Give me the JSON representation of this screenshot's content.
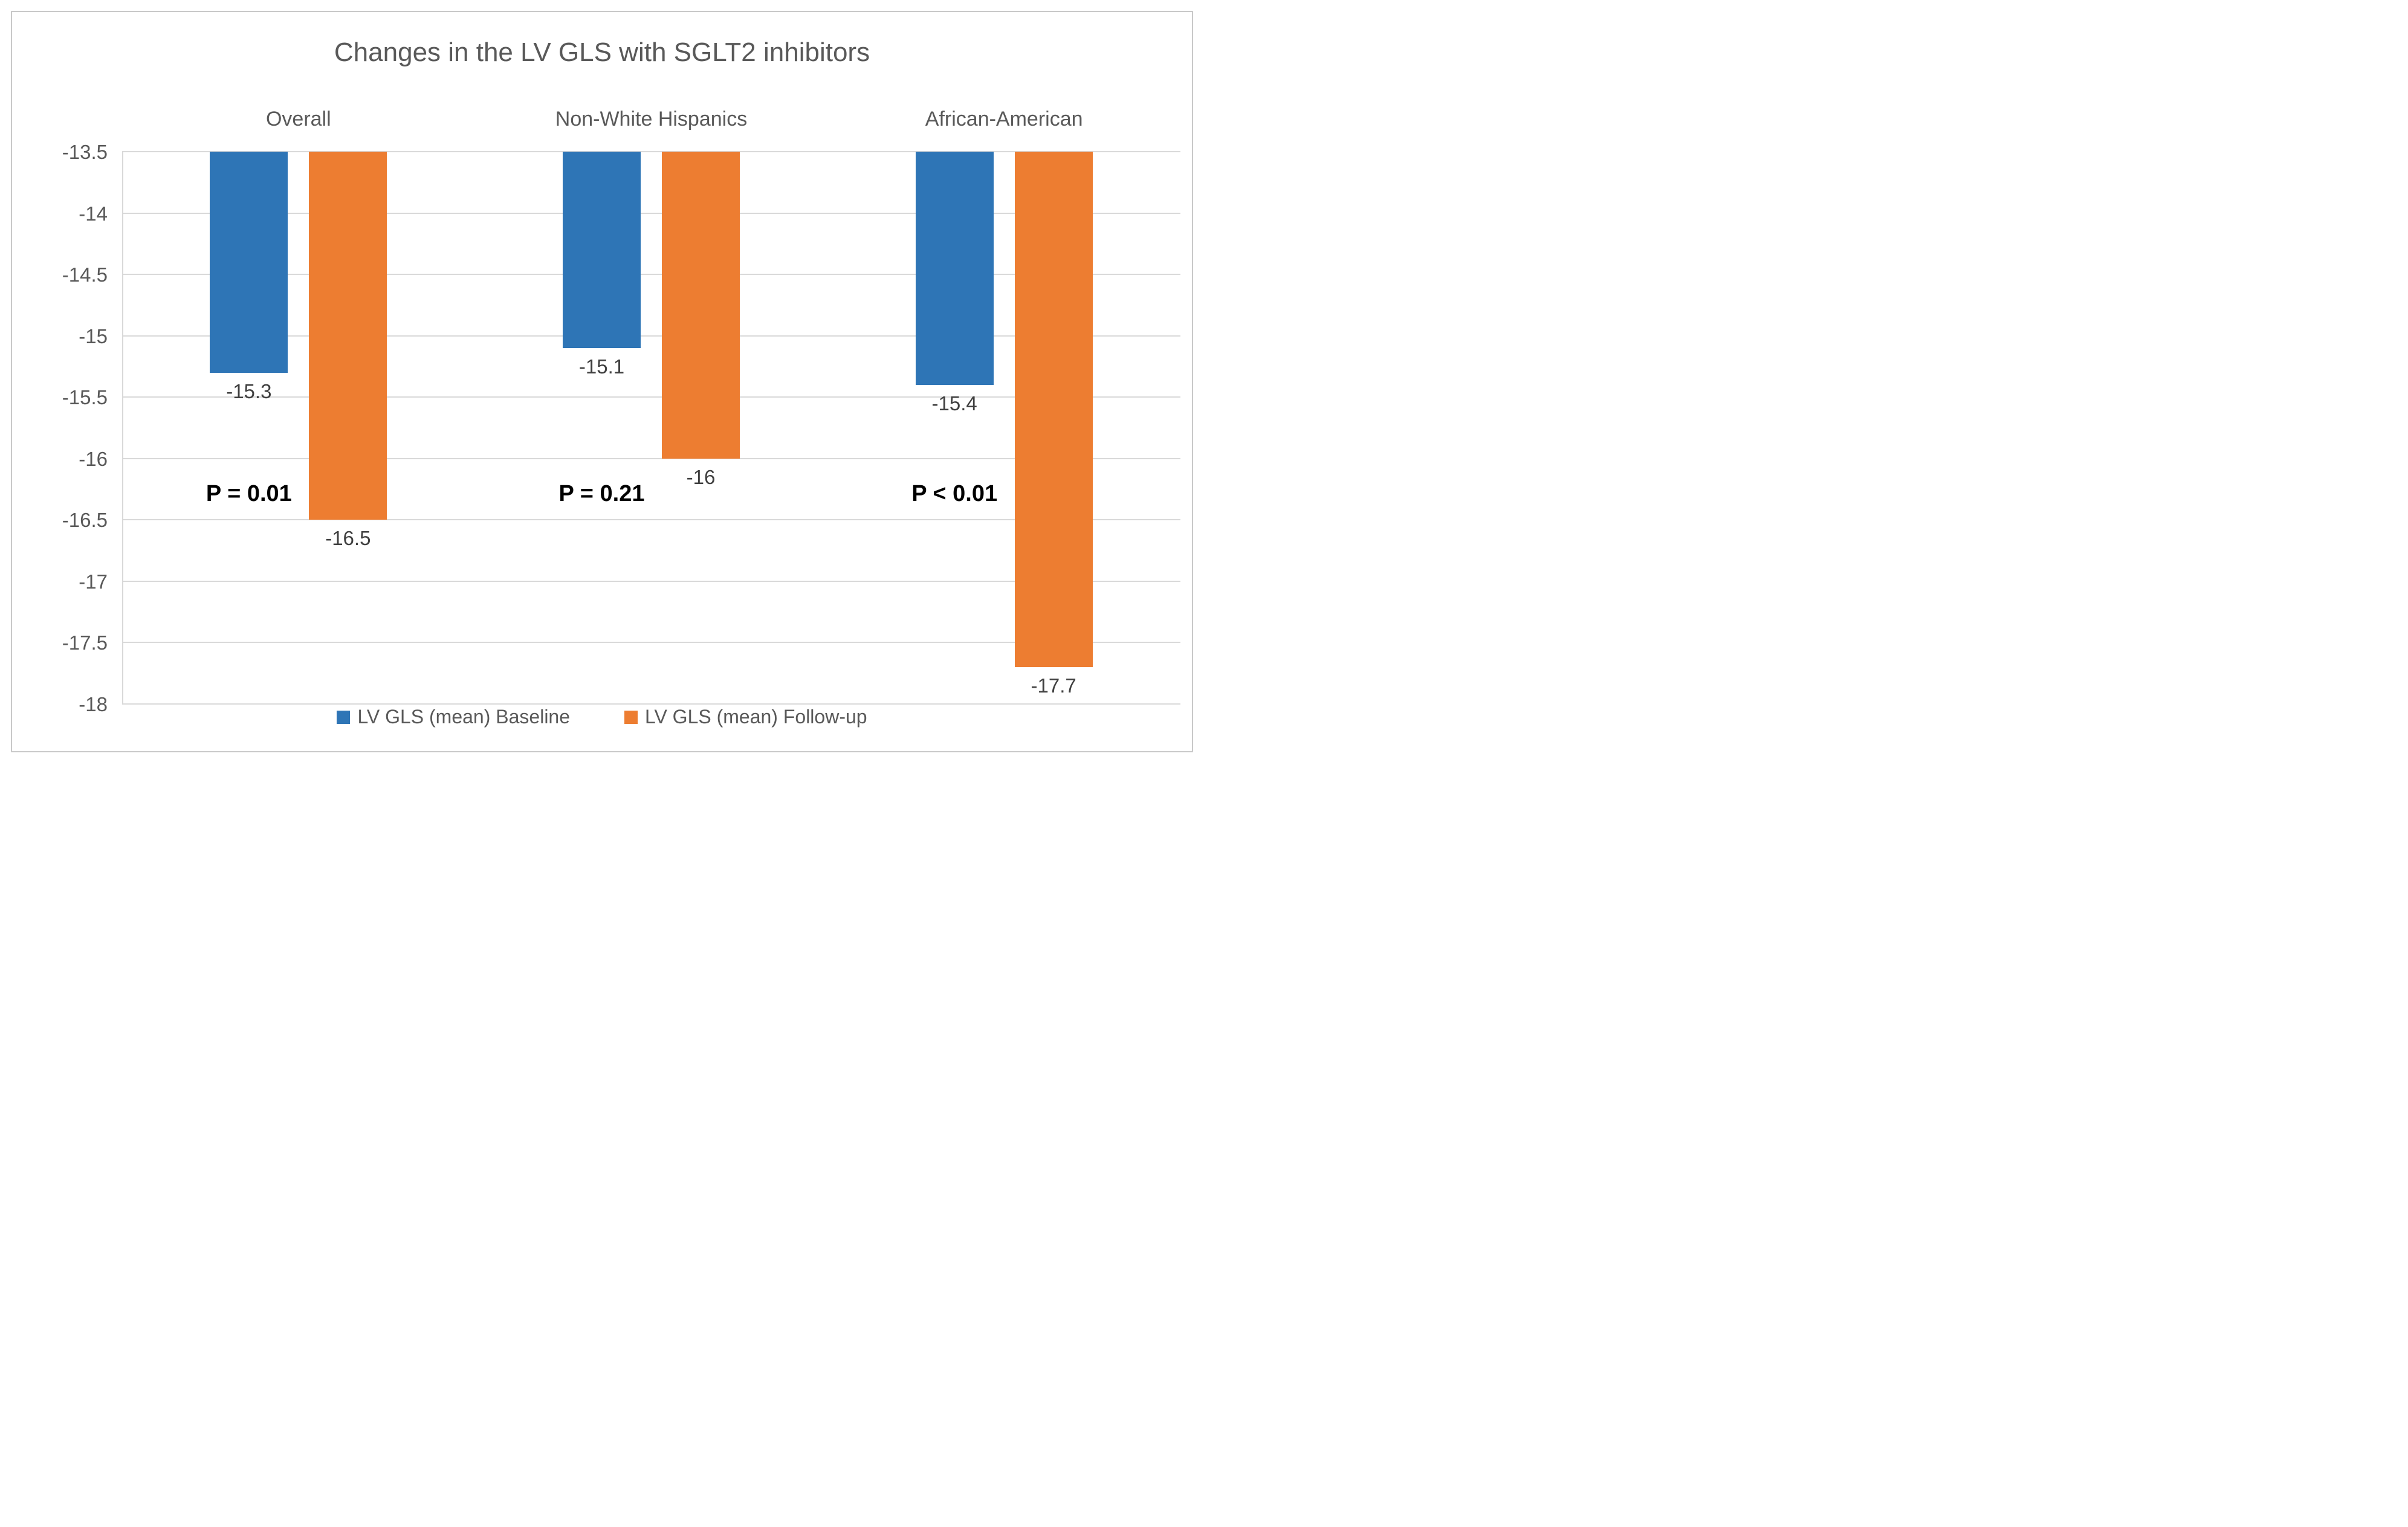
{
  "figure": {
    "background": "#ffffff",
    "border_color": "#c9c9c9"
  },
  "chart_data": {
    "type": "bar",
    "title": "Changes in the LV GLS with SGLT2 inhibitors",
    "categories": [
      "Overall",
      "Non-White Hispanics",
      "African-American"
    ],
    "series": [
      {
        "name": "LV GLS (mean) Baseline",
        "color": "#2E75B6",
        "values": [
          -15.3,
          -15.1,
          -15.4
        ]
      },
      {
        "name": "LV GLS (mean) Follow-up",
        "color": "#ED7D31",
        "values": [
          -16.5,
          -16.0,
          -17.7
        ]
      }
    ],
    "data_labels": [
      [
        "-15.3",
        "-15.1",
        "-15.4"
      ],
      [
        "-16.5",
        "-16",
        "-17.7"
      ]
    ],
    "p_values": [
      "P = 0.01",
      "P = 0.21",
      "P < 0.01"
    ],
    "y_axis": {
      "max": -13.5,
      "min": -18,
      "tick_step": 0.5,
      "tick_labels": [
        "-13.5",
        "-14",
        "-14.5",
        "-15",
        "-15.5",
        "-16",
        "-16.5",
        "-17",
        "-17.5",
        "-18"
      ]
    },
    "bars_hang_from_value": -13.5,
    "p_label_value": -16.3,
    "gridline_color": "#d9d9d9",
    "legend": {
      "position": "bottom",
      "entries": [
        "LV GLS (mean) Baseline",
        "LV GLS (mean) Follow-up"
      ]
    },
    "text_colors": {
      "title": "#595959",
      "ticks": "#595959",
      "category": "#595959",
      "data_label": "#3f3f3f",
      "p_label": "#000000",
      "legend": "#595959"
    }
  }
}
